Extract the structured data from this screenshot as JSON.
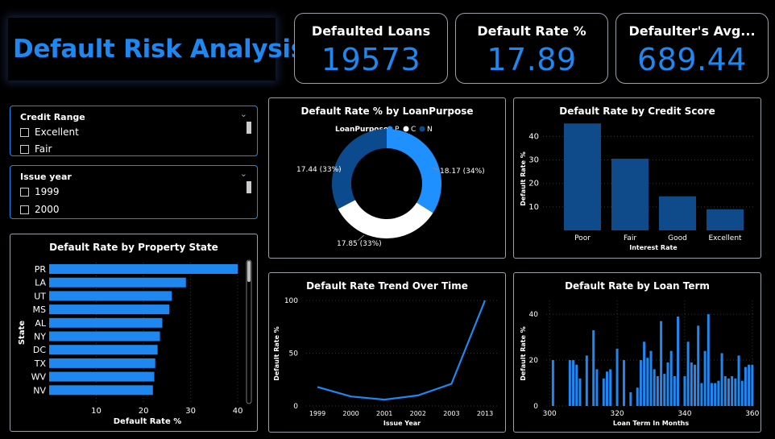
{
  "dashboard": {
    "title": "Default Risk Analysis"
  },
  "kpis": [
    {
      "label": "Defaulted Loans",
      "value": "19573"
    },
    {
      "label": "Default Rate %",
      "value": "17.89"
    },
    {
      "label": "Defaulter's Avg...",
      "value": "689.44"
    }
  ],
  "slicers": {
    "credit_range": {
      "title": "Credit Range",
      "items": [
        "Excellent",
        "Fair"
      ]
    },
    "issue_year": {
      "title": "Issue year",
      "items": [
        "1999",
        "2000"
      ]
    }
  },
  "colors": {
    "accent": "#1e88f0",
    "bar_dark": "#0f4a8a",
    "donut_light": "#1e90ff",
    "donut_white": "#ffffff",
    "donut_navy": "#0b4a8c"
  },
  "icons": {
    "chevron": "chevron-down-icon"
  },
  "chart_data": [
    {
      "id": "property_state",
      "type": "bar",
      "orientation": "horizontal",
      "title": "Default Rate by Property State",
      "xlabel": "Default Rate %",
      "ylabel": "State",
      "categories": [
        "PR",
        "LA",
        "UT",
        "MS",
        "AL",
        "NY",
        "DC",
        "TX",
        "WV",
        "NV"
      ],
      "values": [
        40,
        29,
        26,
        25.5,
        24,
        23.5,
        23,
        22.5,
        22.3,
        22
      ],
      "xticks": [
        10,
        20,
        30,
        40
      ],
      "xlim": [
        0,
        41
      ]
    },
    {
      "id": "loan_purpose",
      "type": "pie",
      "title": "Default Rate % by LoanPurpose",
      "legend_title": "LoanPurpose",
      "categories": [
        "P",
        "C",
        "N"
      ],
      "values": [
        18.17,
        17.85,
        17.44
      ],
      "labels": [
        "18.17 (34%)",
        "17.85 (33%)",
        "17.44 (33%)"
      ]
    },
    {
      "id": "credit_score",
      "type": "bar",
      "title": "Default Rate by Credit Score",
      "xlabel": "Interest Rate",
      "ylabel": "Default Rate %",
      "categories": [
        "Poor",
        "Fair",
        "Good",
        "Excellent"
      ],
      "values": [
        45.5,
        30.5,
        14.5,
        9
      ],
      "yticks": [
        10,
        20,
        30,
        40
      ],
      "ylim": [
        0,
        48
      ]
    },
    {
      "id": "trend",
      "type": "line",
      "title": "Default Rate Trend Over Time",
      "xlabel": "Issue Year",
      "ylabel": "Default Rate %",
      "categories": [
        "1999",
        "2000",
        "2001",
        "2002",
        "2003",
        "2013"
      ],
      "values": [
        18,
        9,
        6,
        10,
        21,
        100
      ],
      "yticks": [
        0,
        50,
        100
      ],
      "ylim": [
        0,
        100
      ]
    },
    {
      "id": "loan_term",
      "type": "bar",
      "title": "Default Rate by Loan Term",
      "xlabel": "Loan Term In Months",
      "ylabel": "Default Rate %",
      "x": [
        301,
        306,
        307,
        308,
        309,
        311,
        313,
        314,
        316,
        317,
        318,
        320,
        322,
        324,
        326,
        327,
        328,
        329,
        330,
        331,
        332,
        333,
        334,
        335,
        336,
        337,
        338,
        340,
        341,
        342,
        343,
        344,
        345,
        346,
        347,
        348,
        349,
        350,
        351,
        352,
        353,
        354,
        355,
        356,
        357,
        358,
        359,
        360
      ],
      "values": [
        20,
        20,
        20,
        18,
        12,
        22,
        33,
        16,
        12,
        15,
        16,
        25,
        20,
        6,
        8,
        20,
        28,
        21,
        24,
        16,
        13,
        37,
        14,
        19,
        24,
        13,
        39,
        13,
        28,
        19,
        18,
        35,
        10,
        24,
        40,
        10,
        10,
        11,
        23,
        13,
        12,
        13,
        12,
        22,
        11,
        17,
        18,
        18
      ],
      "xticks": [
        300,
        320,
        340,
        360
      ],
      "yticks": [
        0,
        20,
        40
      ],
      "xlim": [
        299,
        361
      ],
      "ylim": [
        0,
        46
      ]
    }
  ]
}
